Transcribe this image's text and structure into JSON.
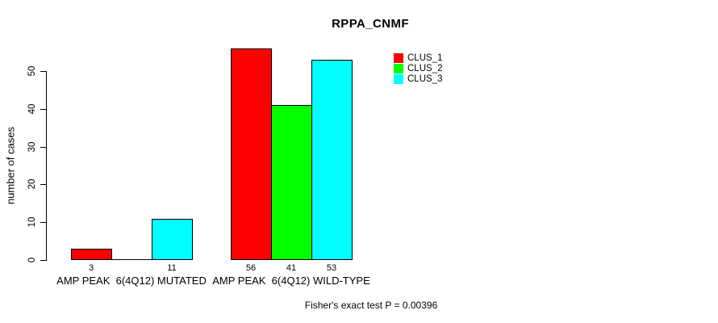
{
  "figure": {
    "background_color": "#ffffff",
    "text_color": "#000000"
  },
  "chart_data": {
    "type": "bar",
    "title": "RPPA_CNMF",
    "xlabel": "",
    "ylabel": "number of cases",
    "ylim": [
      0,
      56
    ],
    "yticks": [
      0,
      10,
      20,
      30,
      40,
      50
    ],
    "grid": false,
    "legend_position": "top-right",
    "categories": [
      "AMP PEAK  6(4Q12) MUTATED",
      "AMP PEAK  6(4Q12) WILD-TYPE"
    ],
    "series": [
      {
        "name": "CLUS_1",
        "color": "#ff0000",
        "values": [
          3,
          56
        ]
      },
      {
        "name": "CLUS_2",
        "color": "#00ff00",
        "values": [
          0,
          41
        ]
      },
      {
        "name": "CLUS_3",
        "color": "#00ffff",
        "values": [
          11,
          53
        ]
      }
    ],
    "bar_value_labels_shown": [
      "3",
      "11",
      "56",
      "41",
      "53"
    ],
    "annotation": "Fisher's exact test P = 0.00396"
  }
}
